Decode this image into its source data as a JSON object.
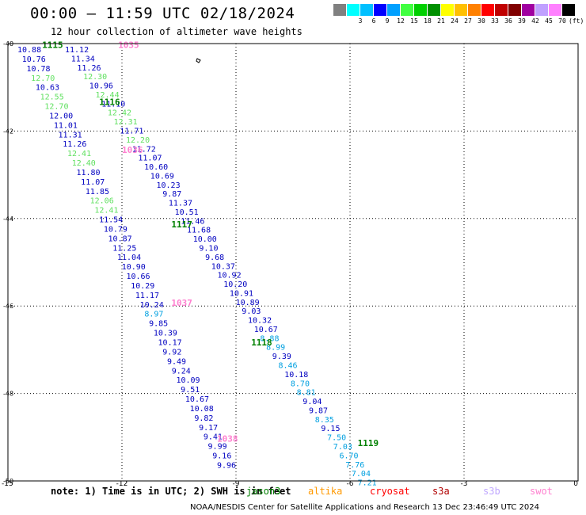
{
  "title": "00:00 – 11:59 UTC 02/18/2024",
  "subtitle": "12 hour collection of altimeter wave heights",
  "legend": {
    "unit": "(ft)",
    "swatches": [
      {
        "color": "#808080",
        "label": ""
      },
      {
        "color": "#00ffff",
        "label": "3"
      },
      {
        "color": "#00c0ff",
        "label": "6"
      },
      {
        "color": "#0000ff",
        "label": "9"
      },
      {
        "color": "#00a0ff",
        "label": "12"
      },
      {
        "color": "#40ff40",
        "label": "15"
      },
      {
        "color": "#00d000",
        "label": "18"
      },
      {
        "color": "#009000",
        "label": "21"
      },
      {
        "color": "#ffff00",
        "label": "24"
      },
      {
        "color": "#ffc000",
        "label": "27"
      },
      {
        "color": "#ff8000",
        "label": "30"
      },
      {
        "color": "#ff0000",
        "label": "33"
      },
      {
        "color": "#c00000",
        "label": "36"
      },
      {
        "color": "#800000",
        "label": "39"
      },
      {
        "color": "#a000a0",
        "label": "42"
      },
      {
        "color": "#c0a0ff",
        "label": "45"
      },
      {
        "color": "#ff80ff",
        "label": "70"
      },
      {
        "color": "#000000",
        "label": ""
      }
    ]
  },
  "map": {
    "lat_range": [
      -50,
      -40
    ],
    "lon_range": [
      -15,
      0
    ],
    "y_ticks": [
      "-40",
      "-42",
      "-44",
      "-46",
      "-48",
      "-50"
    ],
    "x_ticks": [
      "-15",
      "-12",
      "-9",
      "-6",
      "-3",
      "0"
    ]
  },
  "pass_labels": [
    {
      "text": "1115",
      "color": "#008000",
      "lon": -14.1,
      "lat": -40.1
    },
    {
      "text": "1035",
      "color": "#ff80d0",
      "lon": -12.1,
      "lat": -40.1
    },
    {
      "text": "1116",
      "color": "#008000",
      "lon": -12.6,
      "lat": -41.4
    },
    {
      "text": "1036",
      "color": "#ff80d0",
      "lon": -12.0,
      "lat": -42.5
    },
    {
      "text": "1117",
      "color": "#008000",
      "lon": -10.7,
      "lat": -44.2
    },
    {
      "text": "1037",
      "color": "#ff80d0",
      "lon": -10.7,
      "lat": -46.0
    },
    {
      "text": "1118",
      "color": "#008000",
      "lon": -8.6,
      "lat": -46.9
    },
    {
      "text": "1038",
      "color": "#ff80d0",
      "lon": -9.5,
      "lat": -49.1
    },
    {
      "text": "1119",
      "color": "#008000",
      "lon": -5.8,
      "lat": -49.2
    }
  ],
  "tracks": [
    {
      "name": "track-a",
      "start": {
        "lon": -14.75,
        "lat": -40.2
      },
      "end": {
        "lon": -9.5,
        "lat": -49.7
      },
      "values": [
        {
          "v": "10.88",
          "c": "#0000c0"
        },
        {
          "v": "10.76",
          "c": "#0000c0"
        },
        {
          "v": "10.78",
          "c": "#0000c0"
        },
        {
          "v": "12.70",
          "c": "#60e060"
        },
        {
          "v": "10.63",
          "c": "#0000c0"
        },
        {
          "v": "12.55",
          "c": "#60e060"
        },
        {
          "v": "12.70",
          "c": "#60e060"
        },
        {
          "v": "12.00",
          "c": "#0000c0"
        },
        {
          "v": "11.01",
          "c": "#0000c0"
        },
        {
          "v": "11.31",
          "c": "#0000c0"
        },
        {
          "v": "11.26",
          "c": "#0000c0"
        },
        {
          "v": "12.41",
          "c": "#60e060"
        },
        {
          "v": "12.40",
          "c": "#60e060"
        },
        {
          "v": "11.80",
          "c": "#0000c0"
        },
        {
          "v": "11.07",
          "c": "#0000c0"
        },
        {
          "v": "11.85",
          "c": "#0000c0"
        },
        {
          "v": "12.06",
          "c": "#60e060"
        },
        {
          "v": "12.41",
          "c": "#60e060"
        },
        {
          "v": "11.54",
          "c": "#0000c0"
        },
        {
          "v": "10.79",
          "c": "#0000c0"
        },
        {
          "v": "10.87",
          "c": "#0000c0"
        },
        {
          "v": "11.25",
          "c": "#0000c0"
        },
        {
          "v": "11.04",
          "c": "#0000c0"
        },
        {
          "v": "10.90",
          "c": "#0000c0"
        },
        {
          "v": "10.66",
          "c": "#0000c0"
        },
        {
          "v": "10.29",
          "c": "#0000c0"
        },
        {
          "v": "11.17",
          "c": "#0000c0"
        },
        {
          "v": "10.24",
          "c": "#0000c0"
        },
        {
          "v": "8.97",
          "c": "#00a0e0"
        },
        {
          "v": "9.85",
          "c": "#0000c0"
        },
        {
          "v": "10.39",
          "c": "#0000c0"
        },
        {
          "v": "10.17",
          "c": "#0000c0"
        },
        {
          "v": "9.92",
          "c": "#0000c0"
        },
        {
          "v": "9.49",
          "c": "#0000c0"
        },
        {
          "v": "9.24",
          "c": "#0000c0"
        },
        {
          "v": "10.09",
          "c": "#0000c0"
        },
        {
          "v": "9.51",
          "c": "#0000c0"
        },
        {
          "v": "10.67",
          "c": "#0000c0"
        },
        {
          "v": "10.08",
          "c": "#0000c0"
        },
        {
          "v": "9.82",
          "c": "#0000c0"
        },
        {
          "v": "9.17",
          "c": "#0000c0"
        },
        {
          "v": "9.41",
          "c": "#0000c0"
        },
        {
          "v": "9.99",
          "c": "#0000c0"
        },
        {
          "v": "9.16",
          "c": "#0000c0"
        },
        {
          "v": "9.96",
          "c": "#0000c0"
        }
      ]
    },
    {
      "name": "track-b",
      "start": {
        "lon": -13.5,
        "lat": -40.2
      },
      "end": {
        "lon": -5.8,
        "lat": -50.1
      },
      "values": [
        {
          "v": "11.12",
          "c": "#0000c0"
        },
        {
          "v": "11.34",
          "c": "#0000c0"
        },
        {
          "v": "11.26",
          "c": "#0000c0"
        },
        {
          "v": "12.30",
          "c": "#60e060"
        },
        {
          "v": "10.96",
          "c": "#0000c0"
        },
        {
          "v": "12.44",
          "c": "#60e060"
        },
        {
          "v": "11.10",
          "c": "#0000c0"
        },
        {
          "v": "12.42",
          "c": "#60e060"
        },
        {
          "v": "12.31",
          "c": "#60e060"
        },
        {
          "v": "11.71",
          "c": "#0000c0"
        },
        {
          "v": "12.20",
          "c": "#60e060"
        },
        {
          "v": "11.72",
          "c": "#0000c0"
        },
        {
          "v": "11.07",
          "c": "#0000c0"
        },
        {
          "v": "10.60",
          "c": "#0000c0"
        },
        {
          "v": "10.69",
          "c": "#0000c0"
        },
        {
          "v": "10.23",
          "c": "#0000c0"
        },
        {
          "v": "9.87",
          "c": "#0000c0"
        },
        {
          "v": "11.37",
          "c": "#0000c0"
        },
        {
          "v": "10.51",
          "c": "#0000c0"
        },
        {
          "v": "11.46",
          "c": "#0000c0"
        },
        {
          "v": "11.68",
          "c": "#0000c0"
        },
        {
          "v": "10.00",
          "c": "#0000c0"
        },
        {
          "v": "9.10",
          "c": "#0000c0"
        },
        {
          "v": "9.68",
          "c": "#0000c0"
        },
        {
          "v": "10.37",
          "c": "#0000c0"
        },
        {
          "v": "10.92",
          "c": "#0000c0"
        },
        {
          "v": "10.20",
          "c": "#0000c0"
        },
        {
          "v": "10.91",
          "c": "#0000c0"
        },
        {
          "v": "10.89",
          "c": "#0000c0"
        },
        {
          "v": "9.03",
          "c": "#0000c0"
        },
        {
          "v": "10.32",
          "c": "#0000c0"
        },
        {
          "v": "10.67",
          "c": "#0000c0"
        },
        {
          "v": "8.88",
          "c": "#00a0e0"
        },
        {
          "v": "8.99",
          "c": "#00a0e0"
        },
        {
          "v": "9.39",
          "c": "#0000c0"
        },
        {
          "v": "8.46",
          "c": "#00a0e0"
        },
        {
          "v": "10.18",
          "c": "#0000c0"
        },
        {
          "v": "8.70",
          "c": "#00a0e0"
        },
        {
          "v": "8.81",
          "c": "#00a0e0"
        },
        {
          "v": "9.04",
          "c": "#0000c0"
        },
        {
          "v": "9.87",
          "c": "#0000c0"
        },
        {
          "v": "8.35",
          "c": "#00a0e0"
        },
        {
          "v": "9.15",
          "c": "#0000c0"
        },
        {
          "v": "7.50",
          "c": "#00a0e0"
        },
        {
          "v": "7.03",
          "c": "#00a0e0"
        },
        {
          "v": "6.70",
          "c": "#00a0e0"
        },
        {
          "v": "7.76",
          "c": "#00a0e0"
        },
        {
          "v": "7.04",
          "c": "#00a0e0"
        },
        {
          "v": "7.21",
          "c": "#00a0e0"
        }
      ]
    }
  ],
  "note": "note:  1) Time is in UTC; 2) SWH is in feet",
  "satellites": [
    {
      "name": "jason3",
      "color": "#008000"
    },
    {
      "name": "altika",
      "color": "#ff9900"
    },
    {
      "name": "cryosat",
      "color": "#ff0000"
    },
    {
      "name": "s3a",
      "color": "#b00000"
    },
    {
      "name": "s3b",
      "color": "#c0a8ff"
    },
    {
      "name": "swot",
      "color": "#ff80d0"
    }
  ],
  "footer": "NOAA/NESDIS Center for Satellite Applications and Research    13 Dec 23:46:49 UTC 2024"
}
